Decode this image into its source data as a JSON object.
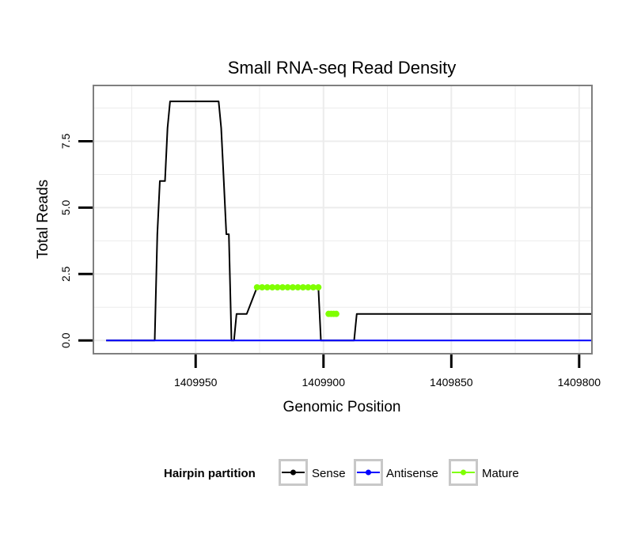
{
  "chart_data": {
    "type": "line",
    "title": "Small RNA-seq Read Density",
    "xlabel": "Genomic Position",
    "ylabel": "Total Reads",
    "xlim": [
      1409990,
      1409795
    ],
    "ylim": [
      -0.5,
      9.6
    ],
    "x_reversed": true,
    "x_ticks": [
      1409950,
      1409900,
      1409850,
      1409800
    ],
    "x_tick_labels": [
      "1409950",
      "1409900",
      "1409850",
      "1409800"
    ],
    "y_ticks": [
      0,
      2.5,
      5,
      7.5
    ],
    "y_tick_labels": [
      "0.0",
      "2.5",
      "5.0",
      "7.5"
    ],
    "grid": true,
    "legend": {
      "title": "Hairpin partition",
      "position": "bottom",
      "entries": [
        "Sense",
        "Antisense",
        "Mature"
      ]
    },
    "series": [
      {
        "name": "Sense",
        "color": "#000000",
        "x": [
          1409985,
          1409966,
          1409965,
          1409964,
          1409962,
          1409961,
          1409960,
          1409958,
          1409948,
          1409941,
          1409940,
          1409939,
          1409938,
          1409937,
          1409936,
          1409935,
          1409934,
          1409932,
          1409930,
          1409926,
          1409924,
          1409902,
          1409901,
          1409888,
          1409887,
          1409795
        ],
        "y": [
          0,
          0,
          4,
          6,
          6,
          8,
          9,
          9,
          9,
          9,
          8,
          6,
          4,
          4,
          0,
          0,
          1,
          1,
          1,
          2,
          2,
          2,
          0,
          0,
          1,
          1
        ]
      },
      {
        "name": "Antisense",
        "color": "#0000ff",
        "x": [
          1409985,
          1409795
        ],
        "y": [
          0,
          0
        ]
      },
      {
        "name": "Mature",
        "color": "#7fff00",
        "x": [
          1409926,
          1409924,
          1409922,
          1409920,
          1409918,
          1409916,
          1409914,
          1409912,
          1409910,
          1409908,
          1409906,
          1409904,
          1409902,
          1409898,
          1409897,
          1409896,
          1409895
        ],
        "y": [
          2,
          2,
          2,
          2,
          2,
          2,
          2,
          2,
          2,
          2,
          2,
          2,
          2,
          1,
          1,
          1,
          1
        ],
        "segments": [
          [
            0,
            12
          ],
          [
            13,
            16
          ]
        ]
      }
    ]
  }
}
